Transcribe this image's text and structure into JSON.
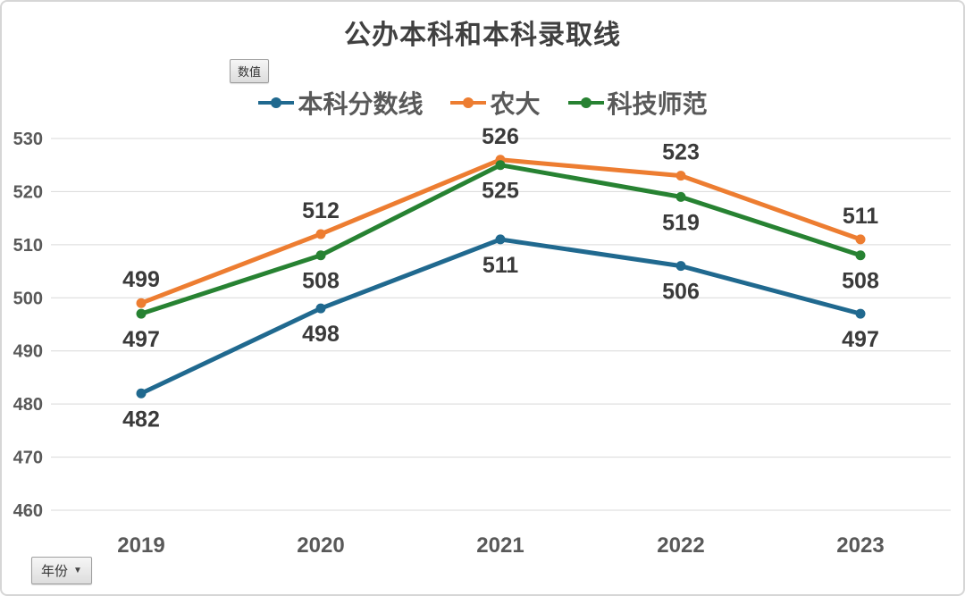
{
  "title": "公办本科和本科录取线",
  "field_buttons": {
    "value_label": "数值",
    "year_label": "年份",
    "year_caret": "▼"
  },
  "chart_data": {
    "type": "line",
    "title": "公办本科和本科录取线",
    "x": [
      "2019",
      "2020",
      "2021",
      "2022",
      "2023"
    ],
    "xlabel": "年份",
    "value_field": "数值",
    "ylim": [
      460,
      530
    ],
    "ytick_step": 10,
    "grid": "horizontal",
    "legend_position": "top-center",
    "series": [
      {
        "name": "本科分数线",
        "color": "#20698F",
        "values": [
          482,
          498,
          511,
          506,
          497
        ],
        "label_position": "below"
      },
      {
        "name": "农大",
        "color": "#ED7D31",
        "values": [
          499,
          512,
          526,
          523,
          511
        ],
        "label_position": "above"
      },
      {
        "name": "科技师范",
        "color": "#278232",
        "values": [
          497,
          508,
          525,
          519,
          508
        ],
        "label_position": "below"
      }
    ],
    "style_colors": {
      "gridline": "#D9D9D9",
      "tick_label": "#595959",
      "data_label": "#3A3A3A",
      "title": "#404040"
    }
  }
}
